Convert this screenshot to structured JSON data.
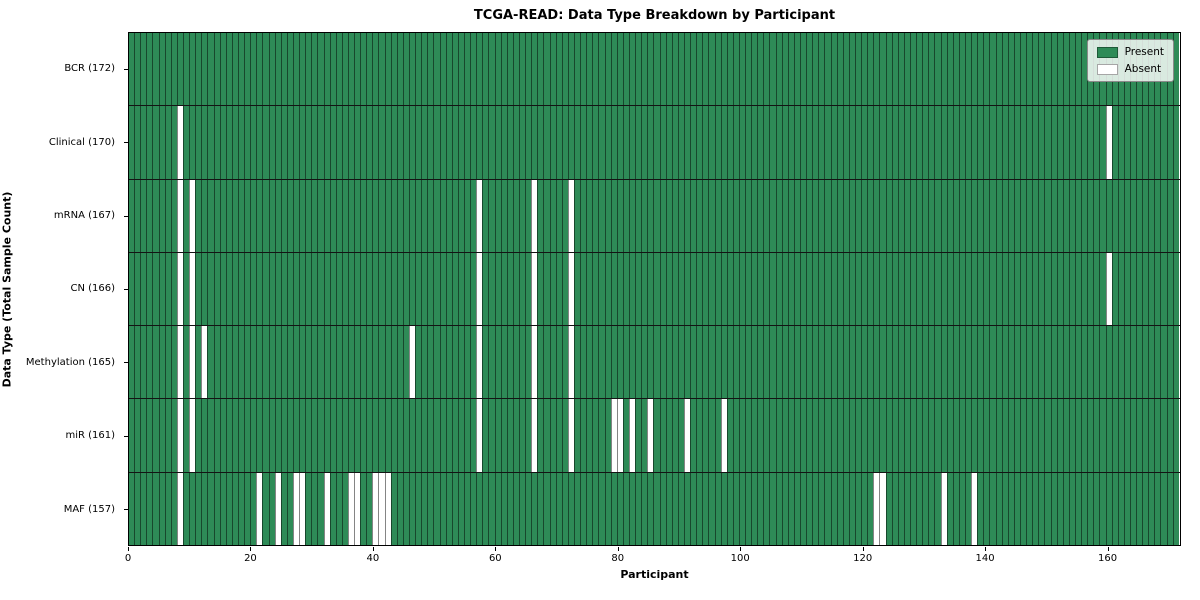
{
  "title": "TCGA-READ: Data Type Breakdown by Participant",
  "x_axis": {
    "label": "Participant",
    "ticks": [
      0,
      20,
      40,
      60,
      80,
      100,
      120,
      140,
      160
    ]
  },
  "y_axis": {
    "label": "Data Type (Total Sample Count)"
  },
  "legend": {
    "present_label": "Present",
    "absent_label": "Absent"
  },
  "colors": {
    "present": "#2e8b57",
    "absent": "#ffffff",
    "cell_edge": "rgba(0,0,0,0.48)",
    "row_divider": "#141414",
    "spine": "#000000"
  },
  "chart_data": {
    "type": "heatmap",
    "title": "TCGA-READ: Data Type Breakdown by Participant",
    "xlabel": "Participant",
    "ylabel": "Data Type (Total Sample Count)",
    "xlim": [
      0,
      172
    ],
    "n_participants": 172,
    "legend_entries": [
      "Present",
      "Absent"
    ],
    "legend_position": "upper right",
    "rows": [
      {
        "label": "BCR (172)",
        "data_type": "BCR",
        "total": 172,
        "absent_participants": []
      },
      {
        "label": "Clinical (170)",
        "data_type": "Clinical",
        "total": 170,
        "absent_participants": [
          8,
          160
        ]
      },
      {
        "label": "mRNA (167)",
        "data_type": "mRNA",
        "total": 167,
        "absent_participants": [
          8,
          10,
          57,
          66,
          72
        ]
      },
      {
        "label": "CN (166)",
        "data_type": "CN",
        "total": 166,
        "absent_participants": [
          8,
          10,
          57,
          66,
          72,
          160
        ]
      },
      {
        "label": "Methylation (165)",
        "data_type": "Methylation",
        "total": 165,
        "absent_participants": [
          8,
          10,
          12,
          46,
          57,
          66,
          72
        ]
      },
      {
        "label": "miR (161)",
        "data_type": "miR",
        "total": 161,
        "absent_participants": [
          8,
          10,
          57,
          66,
          72,
          79,
          80,
          82,
          85,
          91,
          97
        ]
      },
      {
        "label": "MAF (157)",
        "data_type": "MAF",
        "total": 157,
        "absent_participants": [
          8,
          21,
          24,
          27,
          28,
          32,
          36,
          37,
          40,
          41,
          42,
          122,
          123,
          133,
          138
        ]
      }
    ]
  }
}
